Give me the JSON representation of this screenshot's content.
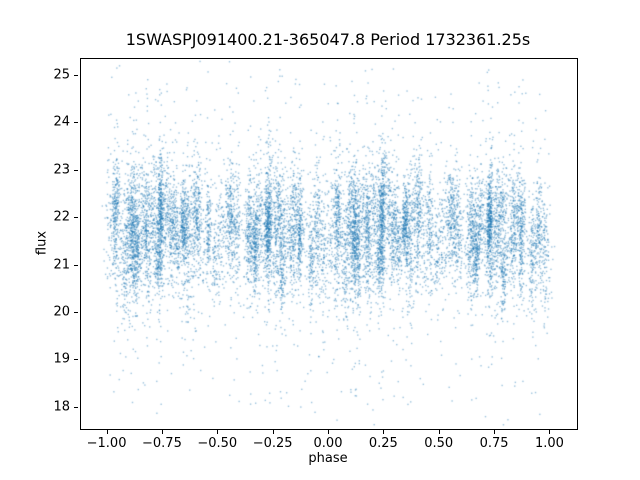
{
  "chart_data": {
    "type": "scatter",
    "title": "1SWASPJ091400.21-365047.8 Period 1732361.25s",
    "xlabel": "phase",
    "ylabel": "flux",
    "xlim": [
      -1.12,
      1.12
    ],
    "ylim": [
      17.55,
      25.36
    ],
    "x_ticks": [
      {
        "v": -1.0,
        "label": "−1.00"
      },
      {
        "v": -0.75,
        "label": "−0.75"
      },
      {
        "v": -0.5,
        "label": "−0.50"
      },
      {
        "v": -0.25,
        "label": "−0.25"
      },
      {
        "v": 0.0,
        "label": "0.00"
      },
      {
        "v": 0.25,
        "label": "0.25"
      },
      {
        "v": 0.5,
        "label": "0.50"
      },
      {
        "v": 0.75,
        "label": "0.75"
      },
      {
        "v": 1.0,
        "label": "1.00"
      }
    ],
    "y_ticks": [
      {
        "v": 18,
        "label": "18"
      },
      {
        "v": 19,
        "label": "19"
      },
      {
        "v": 20,
        "label": "20"
      },
      {
        "v": 21,
        "label": "21"
      },
      {
        "v": 22,
        "label": "22"
      },
      {
        "v": 23,
        "label": "23"
      },
      {
        "v": 24,
        "label": "24"
      },
      {
        "v": 25,
        "label": "25"
      }
    ],
    "grid": false,
    "legend": "none",
    "marker_color": "rgba(31,119,180,0.45)",
    "marker_size_px": 1.4,
    "description": "Dense phase-folded light curve: thousands of small blue points in vertical stripes, flux mostly 20-23.5, sparse outliers spanning 18-25; pattern in [-1,0) mirrors [0,1).",
    "generator": {
      "seed": 11,
      "n_clusters": 70,
      "points_per_cluster": [
        35,
        150
      ],
      "phase_jitter": 0.01,
      "flux_center_range": [
        20.9,
        22.3
      ],
      "flux_std_range": [
        0.35,
        0.75
      ],
      "outlier_frac": 0.05,
      "max_tail_points": 7,
      "tail_flux_range": [
        18.0,
        25.0
      ],
      "n_background": 500
    }
  }
}
